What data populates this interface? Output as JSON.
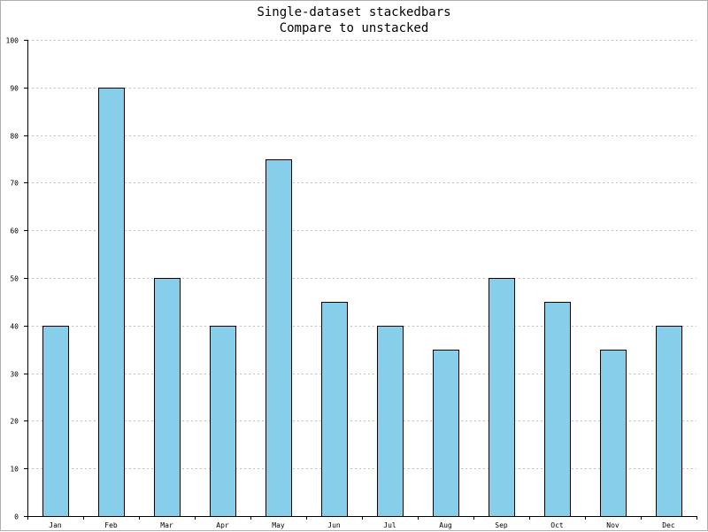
{
  "chart_data": {
    "type": "bar",
    "title": "Single-dataset stackedbars",
    "subtitle": "Compare to unstacked",
    "xlabel": "",
    "ylabel": "",
    "categories": [
      "Jan",
      "Feb",
      "Mar",
      "Apr",
      "May",
      "Jun",
      "Jul",
      "Aug",
      "Sep",
      "Oct",
      "Nov",
      "Dec"
    ],
    "values": [
      40,
      90,
      50,
      40,
      75,
      45,
      40,
      35,
      50,
      45,
      35,
      40
    ],
    "ylim": [
      0,
      100
    ],
    "yticks": [
      0,
      10,
      20,
      30,
      40,
      50,
      60,
      70,
      80,
      90,
      100
    ],
    "grid": true,
    "stacked": true,
    "bar_color": "#87ceeb",
    "bar_edge_color": "#000000",
    "grid_color": "#c0c0c0"
  }
}
